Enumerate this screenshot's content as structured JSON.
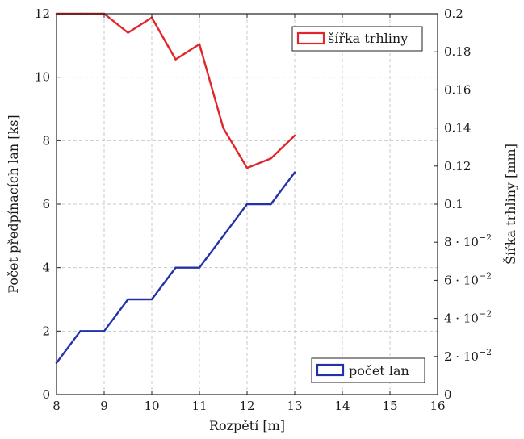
{
  "chart_data": {
    "type": "line",
    "x_label": "Rozpětí [m]",
    "y_left_label": "Počet předpínacích lan [ks]",
    "y_right_label": "Šířka trhliny [mm]",
    "x_range": [
      8,
      16
    ],
    "x_ticks": [
      8,
      9,
      10,
      11,
      12,
      13,
      14,
      15,
      16
    ],
    "y_left_range": [
      0,
      12
    ],
    "y_left_ticks": [
      0,
      2,
      4,
      6,
      8,
      10,
      12
    ],
    "y_right_range": [
      0,
      0.2
    ],
    "y_right_ticks": [
      {
        "value": 0,
        "label": "0",
        "exp": ""
      },
      {
        "value": 0.02,
        "label": "2 · 10",
        "exp": "−2"
      },
      {
        "value": 0.04,
        "label": "4 · 10",
        "exp": "−2"
      },
      {
        "value": 0.06,
        "label": "6 · 10",
        "exp": "−2"
      },
      {
        "value": 0.08,
        "label": "8 · 10",
        "exp": "−2"
      },
      {
        "value": 0.1,
        "label": "0.1",
        "exp": ""
      },
      {
        "value": 0.12,
        "label": "0.12",
        "exp": ""
      },
      {
        "value": 0.14,
        "label": "0.14",
        "exp": ""
      },
      {
        "value": 0.16,
        "label": "0.16",
        "exp": ""
      },
      {
        "value": 0.18,
        "label": "0.18",
        "exp": ""
      },
      {
        "value": 0.2,
        "label": "0.2",
        "exp": ""
      }
    ],
    "grid": true,
    "series": [
      {
        "name": "šířka trhliny",
        "axis": "right",
        "color": "#e0262b",
        "legend_position": "top-right",
        "x": [
          8,
          8.5,
          9,
          9.5,
          10,
          10.5,
          11,
          11.5,
          12,
          12.5,
          13
        ],
        "y": [
          0.2,
          0.2,
          0.2,
          0.19,
          0.198,
          0.176,
          0.184,
          0.14,
          0.119,
          0.124,
          0.136
        ]
      },
      {
        "name": "počet lan",
        "axis": "left",
        "color": "#2233aa",
        "legend_position": "bottom-right",
        "x": [
          8,
          8.5,
          9,
          9.5,
          10,
          10.5,
          11,
          11.5,
          12,
          12.5,
          13
        ],
        "y": [
          1,
          2,
          2,
          3,
          3,
          4,
          4,
          5,
          6,
          6,
          7
        ]
      }
    ]
  }
}
